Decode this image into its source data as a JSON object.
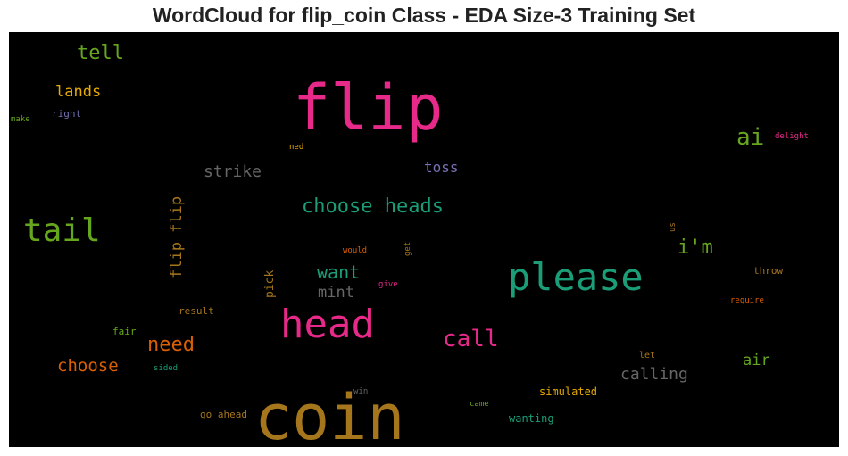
{
  "title": "WordCloud for flip_coin Class - EDA Size-3 Training Set",
  "words": [
    {
      "text": "flip",
      "color": "#e7298a",
      "weight": 70
    },
    {
      "text": "coin",
      "color": "#a6761d",
      "weight": 70
    },
    {
      "text": "head",
      "color": "#e7298a",
      "weight": 44
    },
    {
      "text": "please",
      "color": "#1b9e77",
      "weight": 42
    },
    {
      "text": "tail",
      "color": "#66a61e",
      "weight": 36
    },
    {
      "text": "ai",
      "color": "#66a61e",
      "weight": 26
    },
    {
      "text": "call",
      "color": "#e7298a",
      "weight": 26
    },
    {
      "text": "choose heads",
      "color": "#1b9e77",
      "weight": 22
    },
    {
      "text": "tell",
      "color": "#66a61e",
      "weight": 22
    },
    {
      "text": "i'm",
      "color": "#66a61e",
      "weight": 22
    },
    {
      "text": "need",
      "color": "#d95f02",
      "weight": 22
    },
    {
      "text": "want",
      "color": "#1b9e77",
      "weight": 20
    },
    {
      "text": "choose",
      "color": "#d95f02",
      "weight": 19
    },
    {
      "text": "strike",
      "color": "#666666",
      "weight": 18
    },
    {
      "text": "calling",
      "color": "#666666",
      "weight": 18
    },
    {
      "text": "flip flip",
      "color": "#a6761d",
      "weight": 17
    },
    {
      "text": "lands",
      "color": "#e6ab02",
      "weight": 17
    },
    {
      "text": "mint",
      "color": "#666666",
      "weight": 17
    },
    {
      "text": "air",
      "color": "#66a61e",
      "weight": 17
    },
    {
      "text": "toss",
      "color": "#7570b3",
      "weight": 16
    },
    {
      "text": "pick",
      "color": "#a6761d",
      "weight": 13
    },
    {
      "text": "wanting",
      "color": "#1b9e77",
      "weight": 12
    },
    {
      "text": "simulated",
      "color": "#e6ab02",
      "weight": 12
    },
    {
      "text": "result",
      "color": "#a6761d",
      "weight": 11
    },
    {
      "text": "throw",
      "color": "#a6761d",
      "weight": 11
    },
    {
      "text": "go ahead",
      "color": "#a6761d",
      "weight": 11
    },
    {
      "text": "right",
      "color": "#7570b3",
      "weight": 11
    },
    {
      "text": "fair",
      "color": "#66a61e",
      "weight": 11
    },
    {
      "text": "let",
      "color": "#a6761d",
      "weight": 10
    },
    {
      "text": "delight",
      "color": "#e7298a",
      "weight": 9
    },
    {
      "text": "sided",
      "color": "#1b9e77",
      "weight": 9
    },
    {
      "text": "require",
      "color": "#d95f02",
      "weight": 9
    },
    {
      "text": "came",
      "color": "#66a61e",
      "weight": 9
    },
    {
      "text": "win",
      "color": "#666666",
      "weight": 9
    },
    {
      "text": "would",
      "color": "#d95f02",
      "weight": 9
    },
    {
      "text": "give",
      "color": "#e7298a",
      "weight": 9
    },
    {
      "text": "ned",
      "color": "#e6ab02",
      "weight": 9
    },
    {
      "text": "make",
      "color": "#66a61e",
      "weight": 9
    },
    {
      "text": "get",
      "color": "#a6761d",
      "weight": 9
    },
    {
      "text": "us",
      "color": "#a6761d",
      "weight": 9
    }
  ]
}
